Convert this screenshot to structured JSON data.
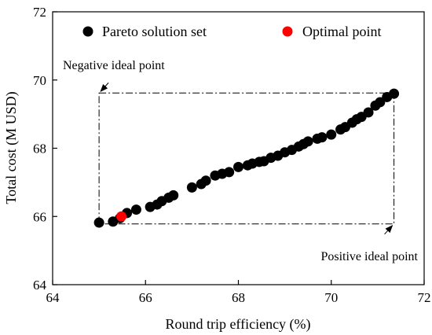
{
  "chart_data": {
    "type": "scatter",
    "xlabel": "Round trip efficiency (%)",
    "ylabel": "Total cost (M USD)",
    "xlim": [
      64,
      72
    ],
    "ylim": [
      64,
      72
    ],
    "xticks": [
      64,
      66,
      68,
      70,
      72
    ],
    "yticks": [
      64,
      66,
      68,
      70,
      72
    ],
    "grid": false,
    "legend_position": "top",
    "series": [
      {
        "name": "Pareto solution set",
        "color": "#000000",
        "points": [
          [
            65.0,
            65.82
          ],
          [
            65.3,
            65.85
          ],
          [
            65.45,
            65.95
          ],
          [
            65.6,
            66.1
          ],
          [
            65.8,
            66.2
          ],
          [
            66.1,
            66.28
          ],
          [
            66.25,
            66.35
          ],
          [
            66.35,
            66.45
          ],
          [
            66.5,
            66.55
          ],
          [
            66.6,
            66.62
          ],
          [
            67.0,
            66.85
          ],
          [
            67.2,
            66.95
          ],
          [
            67.3,
            67.05
          ],
          [
            67.5,
            67.2
          ],
          [
            67.65,
            67.25
          ],
          [
            67.8,
            67.3
          ],
          [
            68.0,
            67.45
          ],
          [
            68.2,
            67.5
          ],
          [
            68.3,
            67.55
          ],
          [
            68.45,
            67.6
          ],
          [
            68.55,
            67.62
          ],
          [
            68.7,
            67.72
          ],
          [
            68.85,
            67.78
          ],
          [
            69.0,
            67.88
          ],
          [
            69.15,
            67.95
          ],
          [
            69.3,
            68.05
          ],
          [
            69.4,
            68.12
          ],
          [
            69.5,
            68.2
          ],
          [
            69.7,
            68.28
          ],
          [
            69.8,
            68.32
          ],
          [
            70.0,
            68.4
          ],
          [
            70.2,
            68.55
          ],
          [
            70.3,
            68.62
          ],
          [
            70.45,
            68.75
          ],
          [
            70.55,
            68.85
          ],
          [
            70.65,
            68.92
          ],
          [
            70.8,
            69.05
          ],
          [
            70.95,
            69.25
          ],
          [
            71.05,
            69.35
          ],
          [
            71.2,
            69.5
          ],
          [
            71.35,
            69.6
          ]
        ]
      },
      {
        "name": "Optimal point",
        "color": "#ff0000",
        "points": [
          [
            65.48,
            66.0
          ]
        ]
      }
    ],
    "reference_box": {
      "x": [
        65.0,
        71.35
      ],
      "y": [
        65.78,
        69.62
      ]
    },
    "annotations": [
      {
        "label": "Negative ideal point",
        "x": 65.0,
        "y": 69.62
      },
      {
        "label": "Positive ideal point",
        "x": 71.35,
        "y": 65.78
      }
    ]
  }
}
